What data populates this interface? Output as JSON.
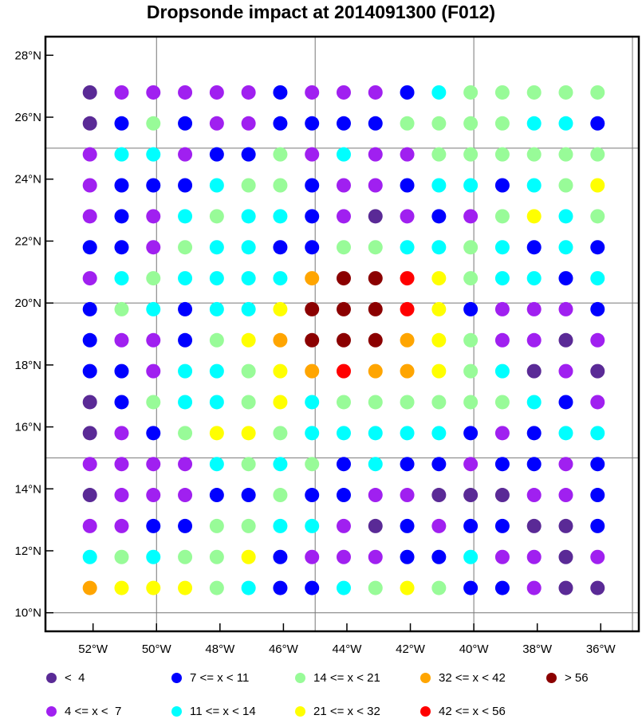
{
  "chart_data": {
    "type": "scatter",
    "title": "Dropsonde impact at 2014091300 (F012)",
    "xlim": [
      -53.5,
      -34.8
    ],
    "ylim": [
      9.4,
      28.6
    ],
    "x_ticks": [
      {
        "value": -52,
        "label": "52°W"
      },
      {
        "value": -50,
        "label": "50°W"
      },
      {
        "value": -48,
        "label": "48°W"
      },
      {
        "value": -46,
        "label": "46°W"
      },
      {
        "value": -44,
        "label": "44°W"
      },
      {
        "value": -42,
        "label": "42°W"
      },
      {
        "value": -40,
        "label": "40°W"
      },
      {
        "value": -38,
        "label": "38°W"
      },
      {
        "value": -36,
        "label": "36°W"
      }
    ],
    "y_ticks": [
      {
        "value": 10,
        "label": "10°N"
      },
      {
        "value": 12,
        "label": "12°N"
      },
      {
        "value": 14,
        "label": "14°N"
      },
      {
        "value": 16,
        "label": "16°N"
      },
      {
        "value": 18,
        "label": "18°N"
      },
      {
        "value": 20,
        "label": "20°N"
      },
      {
        "value": 22,
        "label": "22°N"
      },
      {
        "value": 24,
        "label": "24°N"
      },
      {
        "value": 26,
        "label": "26°N"
      },
      {
        "value": 28,
        "label": "28°N"
      }
    ],
    "grid_x": [
      -50,
      -45,
      -40,
      -35
    ],
    "grid_y": [
      10,
      15,
      20,
      25
    ],
    "x": [
      -52.1,
      -51.1,
      -50.1,
      -49.1,
      -48.1,
      -47.1,
      -46.1,
      -45.1,
      -44.1,
      -43.1,
      -42.1,
      -41.1,
      -40.1,
      -39.1,
      -38.1,
      -37.1,
      -36.1
    ],
    "y": [
      26.8,
      25.8,
      24.8,
      23.8,
      22.8,
      21.8,
      20.8,
      19.8,
      18.8,
      17.8,
      16.8,
      15.8,
      14.8,
      13.8,
      12.8,
      11.8,
      10.8
    ],
    "classes": [
      {
        "id": "c0",
        "label": "<  4",
        "color": "#5a2a96"
      },
      {
        "id": "c1",
        "label": "4 <= x <  7",
        "color": "#a020f0"
      },
      {
        "id": "c2",
        "label": "7 <= x < 11",
        "color": "#0000ff"
      },
      {
        "id": "c3",
        "label": "11 <= x < 14",
        "color": "#00ffff"
      },
      {
        "id": "c4",
        "label": "14 <= x < 21",
        "color": "#98fb98"
      },
      {
        "id": "c5",
        "label": "21 <= x < 32",
        "color": "#ffff00"
      },
      {
        "id": "c6",
        "label": "32 <= x < 42",
        "color": "#ffa500"
      },
      {
        "id": "c7",
        "label": "42 <= x < 56",
        "color": "#ff0000"
      },
      {
        "id": "c8",
        "label": "> 56",
        "color": "#8b0000"
      }
    ],
    "grid_classes": [
      [
        0,
        1,
        1,
        1,
        1,
        1,
        2,
        1,
        1,
        1,
        2,
        3,
        4,
        4,
        4,
        4,
        4
      ],
      [
        0,
        2,
        4,
        2,
        1,
        1,
        2,
        2,
        2,
        2,
        4,
        4,
        4,
        4,
        3,
        3,
        2
      ],
      [
        1,
        3,
        3,
        1,
        2,
        2,
        4,
        1,
        3,
        1,
        1,
        4,
        4,
        4,
        4,
        4,
        4
      ],
      [
        1,
        2,
        2,
        2,
        3,
        4,
        4,
        2,
        1,
        1,
        2,
        3,
        3,
        2,
        3,
        4,
        5
      ],
      [
        1,
        2,
        1,
        3,
        4,
        3,
        3,
        2,
        1,
        0,
        1,
        2,
        1,
        4,
        5,
        3,
        4
      ],
      [
        2,
        2,
        1,
        4,
        3,
        3,
        2,
        2,
        4,
        4,
        3,
        3,
        4,
        3,
        2,
        3,
        2
      ],
      [
        1,
        3,
        4,
        3,
        3,
        3,
        3,
        6,
        8,
        8,
        7,
        5,
        4,
        3,
        3,
        2,
        3
      ],
      [
        2,
        4,
        3,
        2,
        3,
        3,
        5,
        8,
        8,
        8,
        7,
        5,
        2,
        1,
        1,
        1,
        2
      ],
      [
        2,
        1,
        1,
        2,
        4,
        5,
        6,
        8,
        8,
        8,
        6,
        5,
        4,
        1,
        1,
        0,
        1
      ],
      [
        2,
        2,
        1,
        3,
        3,
        4,
        5,
        6,
        7,
        6,
        6,
        5,
        4,
        3,
        0,
        1,
        0
      ],
      [
        0,
        2,
        4,
        3,
        3,
        4,
        5,
        3,
        4,
        4,
        4,
        4,
        4,
        4,
        3,
        2,
        1
      ],
      [
        0,
        1,
        2,
        4,
        5,
        5,
        4,
        3,
        3,
        3,
        3,
        3,
        2,
        1,
        2,
        3,
        3
      ],
      [
        1,
        1,
        1,
        1,
        3,
        4,
        3,
        4,
        2,
        3,
        2,
        2,
        1,
        2,
        2,
        1,
        2
      ],
      [
        0,
        1,
        1,
        1,
        2,
        2,
        4,
        2,
        2,
        1,
        1,
        0,
        0,
        0,
        1,
        1,
        2
      ],
      [
        1,
        1,
        2,
        2,
        4,
        4,
        3,
        3,
        1,
        0,
        2,
        1,
        2,
        2,
        0,
        0,
        2
      ],
      [
        3,
        4,
        3,
        4,
        4,
        5,
        2,
        1,
        1,
        1,
        2,
        2,
        3,
        1,
        1,
        0,
        1
      ],
      [
        6,
        5,
        5,
        5,
        4,
        3,
        2,
        2,
        3,
        4,
        5,
        4,
        2,
        2,
        1,
        0,
        0
      ]
    ]
  }
}
